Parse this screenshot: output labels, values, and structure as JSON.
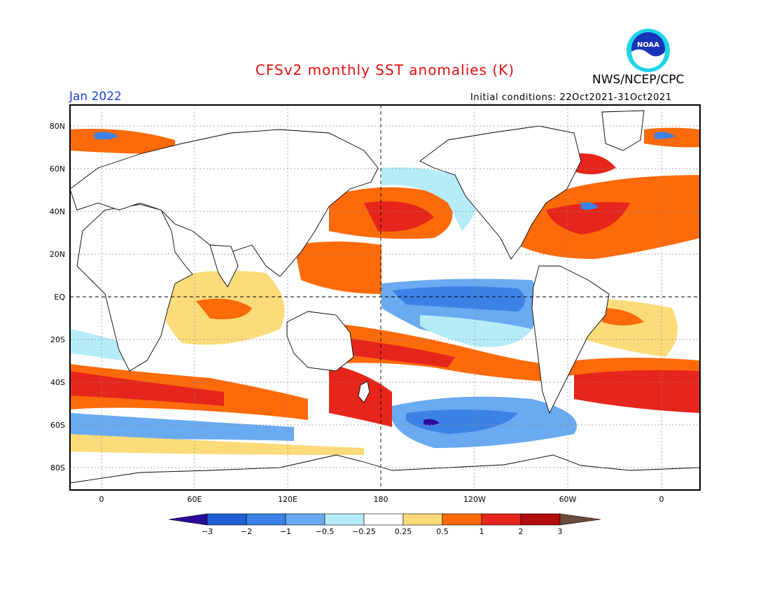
{
  "title": "CFSv2 monthly SST anomalies (K)",
  "agency": "NWS/NCEP/CPC",
  "period": "Jan 2022",
  "initial_conditions": "Initial conditions: 22Oct2021-31Oct2021",
  "logo_text": "NOAA",
  "axes": {
    "lat_labels": [
      "80N",
      "60N",
      "40N",
      "20N",
      "EQ",
      "20S",
      "40S",
      "60S",
      "80S"
    ],
    "lon_labels": [
      "0",
      "60E",
      "120E",
      "180",
      "120W",
      "60W",
      "0"
    ]
  },
  "colorbar": {
    "labels": [
      "−3",
      "−2",
      "−1",
      "−0.5",
      "−0.25",
      "0.25",
      "0.5",
      "1",
      "2",
      "3"
    ],
    "colors": [
      "#2b0b9c",
      "#1f5fd1",
      "#3c82e6",
      "#6aaaf0",
      "#b6ecf8",
      "#ffffff",
      "#fcdc7a",
      "#fd6a0a",
      "#e6261c",
      "#b20c0c",
      "#6d4a3c"
    ]
  },
  "colors": {
    "title": "#e01010",
    "period": "#1a3fd6"
  }
}
